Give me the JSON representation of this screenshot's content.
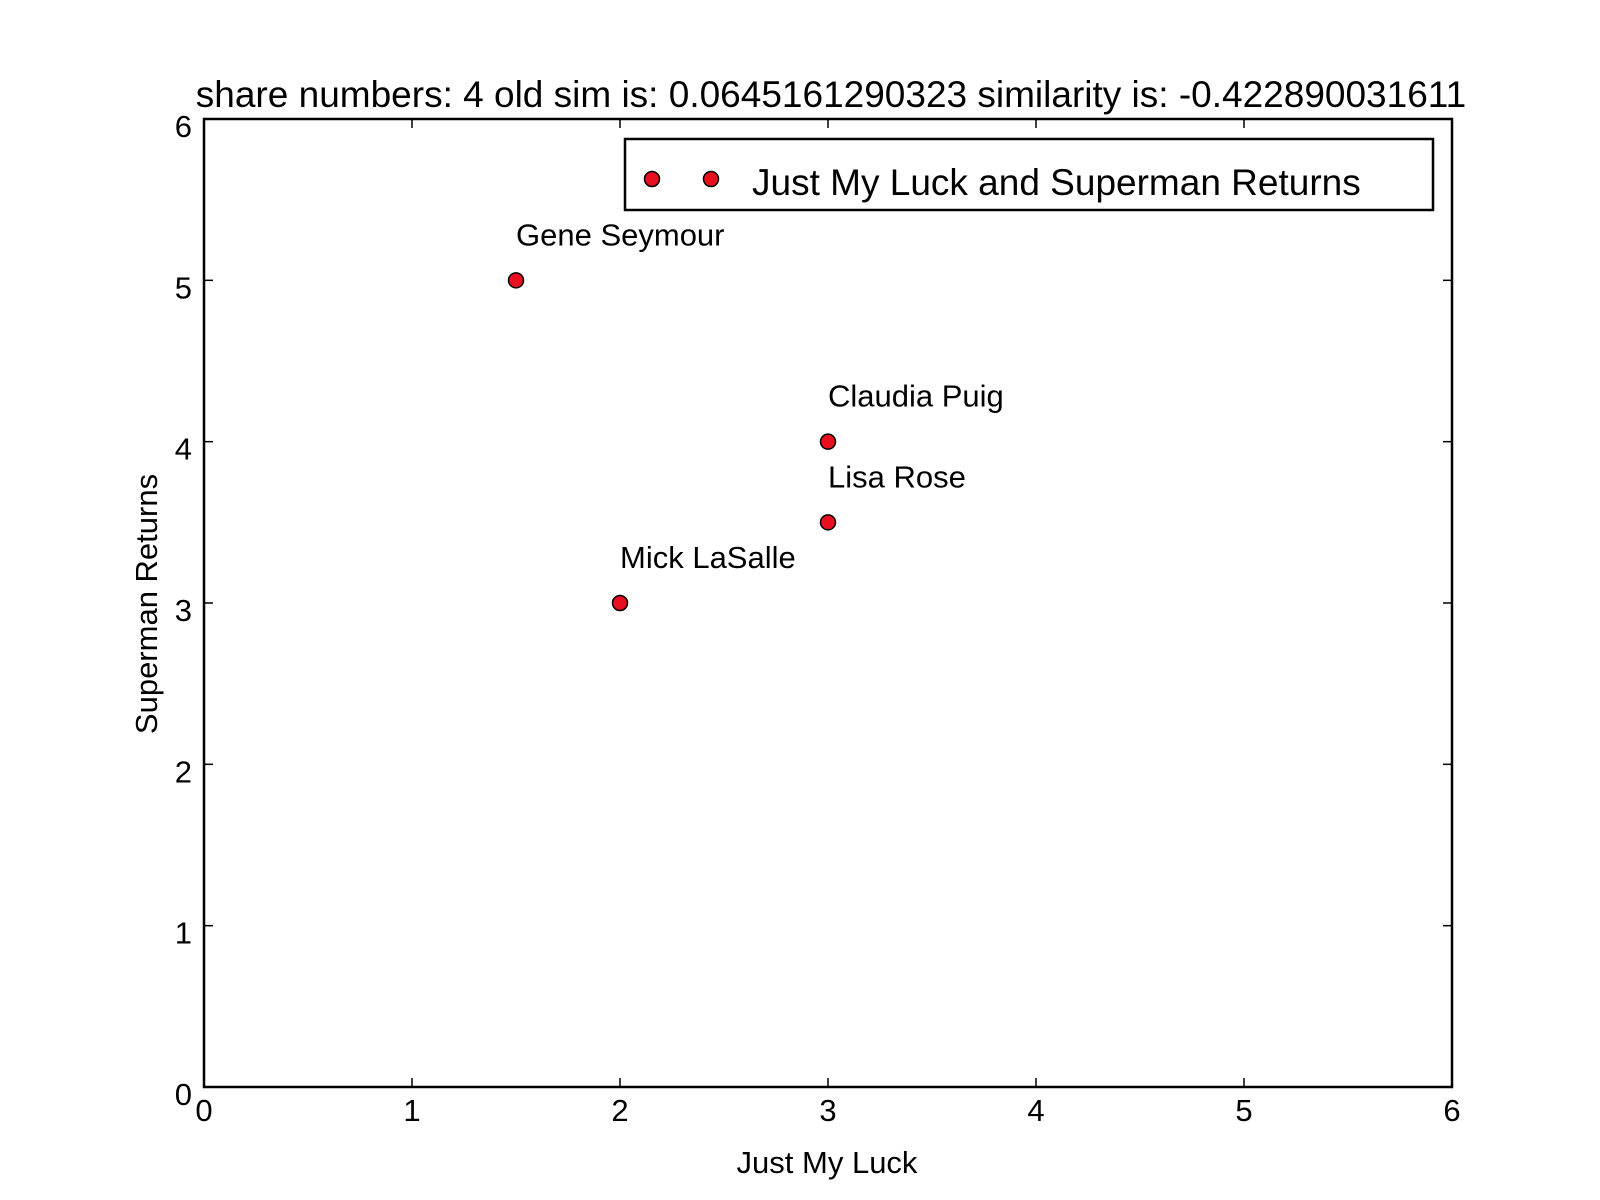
{
  "chart_data": {
    "type": "scatter",
    "title": "share numbers: 4 old sim is: 0.0645161290323 similarity is: -0.422890031611",
    "xlabel": "Just My Luck",
    "ylabel": "Superman Returns",
    "xlim": [
      0,
      6
    ],
    "ylim": [
      0,
      6
    ],
    "xticks": [
      "0",
      "1",
      "2",
      "3",
      "4",
      "5",
      "6"
    ],
    "yticks": [
      "0",
      "1",
      "2",
      "3",
      "4",
      "5",
      "6"
    ],
    "grid": false,
    "legend_position": "top-right",
    "series": [
      {
        "name": "Just My Luck and Superman Returns",
        "color": "#e8101e",
        "points": [
          {
            "x": 1.5,
            "y": 5,
            "label": "Gene Seymour"
          },
          {
            "x": 3,
            "y": 4,
            "label": "Claudia Puig"
          },
          {
            "x": 3,
            "y": 3.5,
            "label": "Lisa Rose"
          },
          {
            "x": 2,
            "y": 3,
            "label": "Mick LaSalle"
          }
        ]
      }
    ]
  }
}
